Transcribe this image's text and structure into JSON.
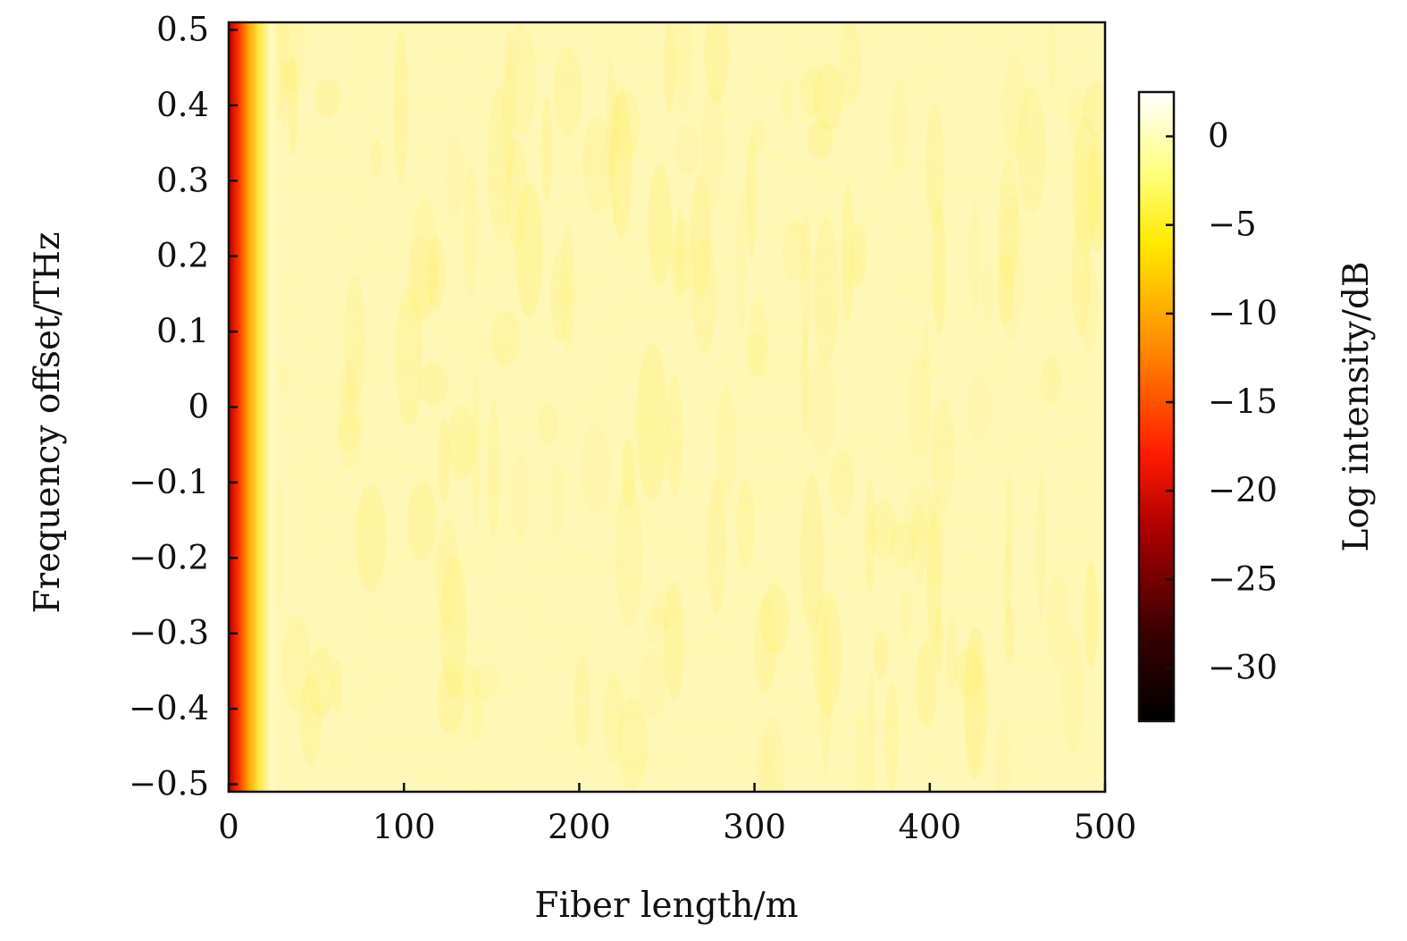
{
  "chart_data": {
    "type": "heatmap",
    "title": "",
    "xlabel": "Fiber length/m",
    "ylabel": "Frequency offset/THz",
    "x_range": [
      0,
      500
    ],
    "y_range": [
      -0.51,
      0.51
    ],
    "x_ticks": [
      0,
      100,
      200,
      300,
      400,
      500
    ],
    "x_tick_labels": [
      "0",
      "100",
      "200",
      "300",
      "400",
      "500"
    ],
    "y_ticks": [
      0.5,
      0.4,
      0.3,
      0.2,
      0.1,
      0,
      -0.1,
      -0.2,
      -0.3,
      -0.4,
      -0.5
    ],
    "y_tick_labels": [
      "0.5",
      "0.4",
      "0.3",
      "0.2",
      "0.1",
      "0",
      "−0.1",
      "−0.2",
      "−0.3",
      "−0.4",
      "−0.5"
    ],
    "colorbar": {
      "label": "Log intensity/dB",
      "range": [
        -33,
        2.5
      ],
      "ticks": [
        0,
        -5,
        -10,
        -15,
        -20,
        -25,
        -30
      ],
      "tick_labels": [
        "0",
        "−5",
        "−10",
        "−15",
        "−20",
        "−25",
        "−30"
      ],
      "colormap": "hot",
      "colormap_stops": [
        {
          "value": -33,
          "color": "#000000"
        },
        {
          "value": -28,
          "color": "#3a0000"
        },
        {
          "value": -22,
          "color": "#b00000"
        },
        {
          "value": -18,
          "color": "#ff1a00"
        },
        {
          "value": -12,
          "color": "#ff8800"
        },
        {
          "value": -6,
          "color": "#ffea00"
        },
        {
          "value": -2,
          "color": "#ffff80"
        },
        {
          "value": 2.5,
          "color": "#ffffff"
        }
      ]
    },
    "description_values": {
      "edge_intensity_at_x0": -22,
      "bulk_intensity_range": [
        -4,
        0.5
      ]
    }
  }
}
